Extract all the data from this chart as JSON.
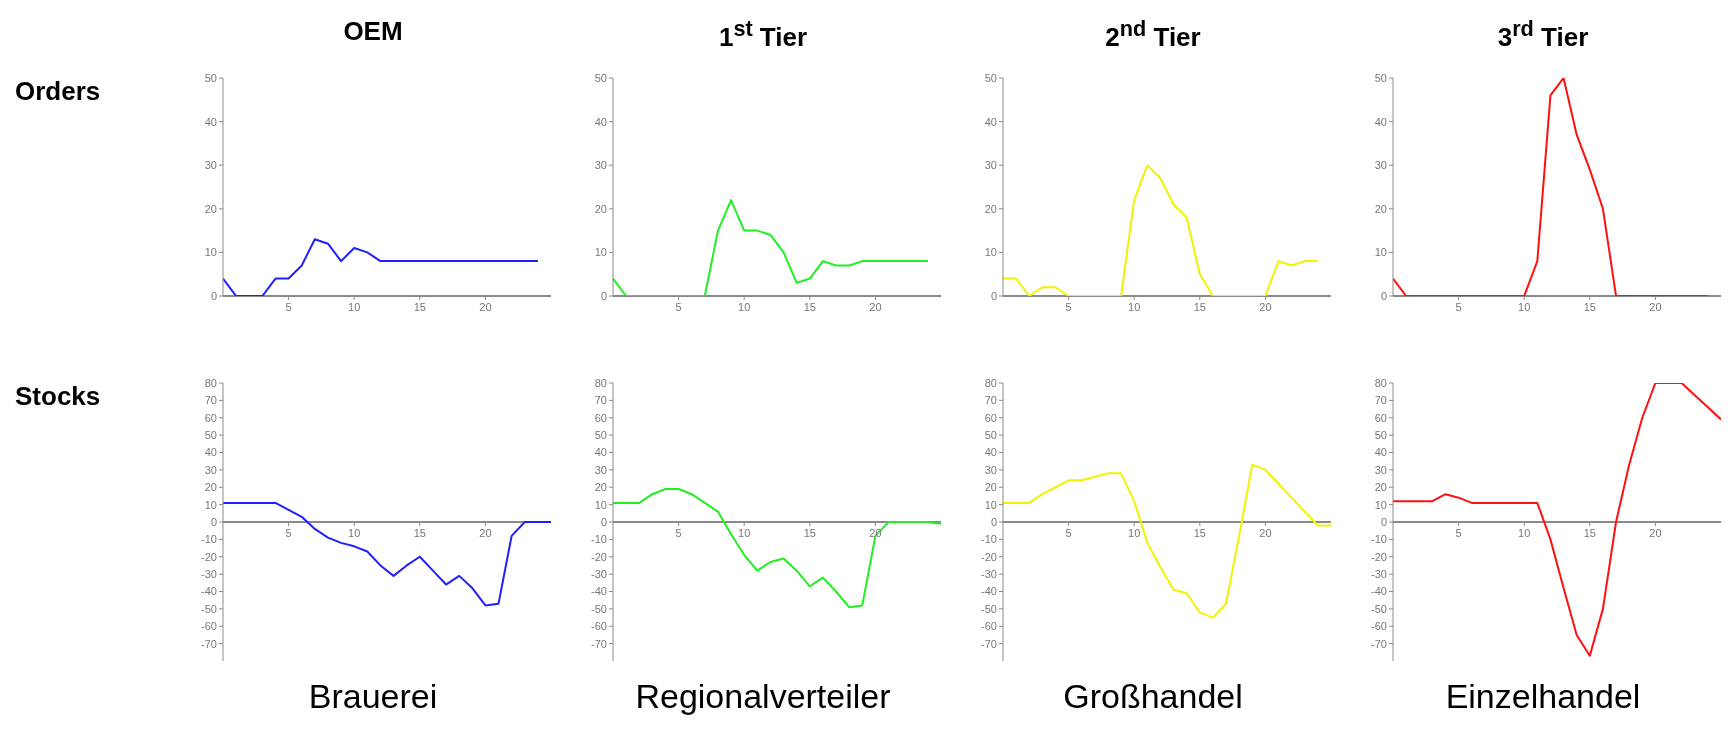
{
  "chart_data": [
    {
      "type": "line",
      "title": "OEM",
      "ylabel": "Orders",
      "x": [
        0,
        1,
        2,
        3,
        4,
        5,
        6,
        7,
        8,
        9,
        10,
        11,
        12,
        13,
        14,
        15,
        16,
        17,
        18,
        19,
        20,
        21,
        22,
        23,
        24
      ],
      "values": [
        4,
        0,
        0,
        0,
        4,
        4,
        7,
        13,
        12,
        8,
        11,
        10,
        8,
        8,
        8,
        8,
        8,
        8,
        8,
        8,
        8,
        8,
        8,
        8,
        8
      ],
      "color": "#2020ff",
      "xlim": [
        0,
        25
      ],
      "xticks": [
        5,
        10,
        15,
        20
      ],
      "ylim": [
        0,
        50
      ],
      "yticks": [
        0,
        10,
        20,
        30,
        40,
        50
      ]
    },
    {
      "type": "line",
      "title": "1$^{st}$ Tier",
      "x": [
        0,
        1,
        2,
        3,
        4,
        5,
        6,
        7,
        8,
        9,
        10,
        11,
        12,
        13,
        14,
        15,
        16,
        17,
        18,
        19,
        20,
        21,
        22,
        23,
        24
      ],
      "values": [
        4,
        0,
        0,
        0,
        0,
        0,
        0,
        0,
        15,
        22,
        15,
        15,
        14,
        10,
        3,
        4,
        8,
        7,
        7,
        8,
        8,
        8,
        8,
        8,
        8
      ],
      "color": "#22ee22",
      "xlim": [
        0,
        25
      ],
      "xticks": [
        5,
        10,
        15,
        20
      ],
      "ylim": [
        0,
        50
      ],
      "yticks": [
        0,
        10,
        20,
        30,
        40,
        50
      ]
    },
    {
      "type": "line",
      "title": "2$^{nd}$ Tier",
      "x": [
        0,
        1,
        2,
        3,
        4,
        5,
        6,
        7,
        8,
        9,
        10,
        11,
        12,
        13,
        14,
        15,
        16,
        17,
        18,
        19,
        20,
        21,
        22,
        23,
        24
      ],
      "values": [
        4,
        4,
        0,
        2,
        2,
        0,
        0,
        0,
        0,
        0,
        22,
        30,
        27,
        21,
        18,
        5,
        0,
        0,
        0,
        0,
        0,
        8,
        7,
        8,
        8
      ],
      "color": "#f2f200",
      "xlim": [
        0,
        25
      ],
      "xticks": [
        5,
        10,
        15,
        20
      ],
      "ylim": [
        0,
        50
      ],
      "yticks": [
        0,
        10,
        20,
        30,
        40,
        50
      ]
    },
    {
      "type": "line",
      "title": "3$^{rd}$ Tier",
      "x": [
        0,
        1,
        2,
        3,
        4,
        5,
        6,
        7,
        8,
        9,
        10,
        11,
        12,
        13,
        14,
        15,
        16,
        17,
        18,
        19,
        20,
        21,
        22,
        23,
        24
      ],
      "values": [
        4,
        0,
        0,
        0,
        0,
        0,
        0,
        0,
        0,
        0,
        0,
        8,
        46,
        50,
        37,
        29,
        20,
        0,
        0,
        0,
        0,
        0,
        0,
        0,
        0
      ],
      "color": "#ff1010",
      "xlim": [
        0,
        25
      ],
      "xticks": [
        5,
        10,
        15,
        20
      ],
      "ylim": [
        0,
        50
      ],
      "yticks": [
        0,
        10,
        20,
        30,
        40,
        50
      ]
    },
    {
      "type": "line",
      "ylabel": "Stocks",
      "xlabel": "Brauerei",
      "x": [
        0,
        1,
        2,
        3,
        4,
        5,
        6,
        7,
        8,
        9,
        10,
        11,
        12,
        13,
        14,
        15,
        16,
        17,
        18,
        19,
        20,
        21,
        22,
        23,
        24,
        25
      ],
      "values": [
        11,
        11,
        11,
        11,
        11,
        7,
        3,
        -4,
        -9,
        -12,
        -14,
        -17,
        -25,
        -31,
        -25,
        -20,
        -28,
        -36,
        -31,
        -38,
        -48,
        -47,
        -8,
        0,
        0,
        0
      ],
      "color": "#2020ff",
      "xlim": [
        0,
        25
      ],
      "xticks": [
        5,
        10,
        15,
        20
      ],
      "ylim": [
        -80,
        80
      ],
      "yticks": [
        80,
        70,
        60,
        50,
        40,
        30,
        20,
        10,
        0,
        -10,
        -20,
        -30,
        -40,
        -50,
        -60,
        -70
      ]
    },
    {
      "type": "line",
      "xlabel": "Regionalverteiler",
      "x": [
        0,
        1,
        2,
        3,
        4,
        5,
        6,
        7,
        8,
        9,
        10,
        11,
        12,
        13,
        14,
        15,
        16,
        17,
        18,
        19,
        20,
        21,
        22,
        23,
        24,
        25
      ],
      "values": [
        11,
        11,
        11,
        16,
        19,
        19,
        16,
        11,
        6,
        -7,
        -19,
        -28,
        -23,
        -21,
        -28,
        -37,
        -32,
        -40,
        -49,
        -48,
        -8,
        0,
        0,
        0,
        0,
        -1
      ],
      "color": "#22ee22",
      "xlim": [
        0,
        25
      ],
      "xticks": [
        5,
        10,
        15,
        20
      ],
      "ylim": [
        -80,
        80
      ],
      "yticks": [
        80,
        70,
        60,
        50,
        40,
        30,
        20,
        10,
        0,
        -10,
        -20,
        -30,
        -40,
        -50,
        -60,
        -70
      ]
    },
    {
      "type": "line",
      "xlabel": "Großhandel",
      "x": [
        0,
        1,
        2,
        3,
        4,
        5,
        6,
        7,
        8,
        9,
        10,
        11,
        12,
        13,
        14,
        15,
        16,
        17,
        18,
        19,
        20,
        21,
        22,
        23,
        24,
        25
      ],
      "values": [
        11,
        11,
        11,
        16,
        20,
        24,
        24,
        26,
        28,
        28,
        12,
        -12,
        -26,
        -39,
        -41,
        -52,
        -55,
        -47,
        -8,
        33,
        30,
        22,
        14,
        6,
        -2,
        -2
      ],
      "color": "#f2f200",
      "xlim": [
        0,
        25
      ],
      "xticks": [
        5,
        10,
        15,
        20
      ],
      "ylim": [
        -80,
        80
      ],
      "yticks": [
        80,
        70,
        60,
        50,
        40,
        30,
        20,
        10,
        0,
        -10,
        -20,
        -30,
        -40,
        -50,
        -60,
        -70
      ]
    },
    {
      "type": "line",
      "xlabel": "Einzelhandel",
      "x": [
        0,
        1,
        2,
        3,
        4,
        5,
        6,
        7,
        8,
        9,
        10,
        11,
        12,
        13,
        14,
        15,
        16,
        17,
        18,
        19,
        20,
        21,
        22,
        23,
        24,
        25
      ],
      "values": [
        12,
        12,
        12,
        12,
        16,
        14,
        11,
        11,
        11,
        11,
        11,
        11,
        -10,
        -38,
        -65,
        -77,
        -50,
        0,
        33,
        60,
        80,
        80,
        80,
        73,
        66,
        59
      ],
      "color": "#ff1010",
      "xlim": [
        0,
        25
      ],
      "xticks": [
        5,
        10,
        15,
        20
      ],
      "ylim": [
        -80,
        80
      ],
      "yticks": [
        80,
        70,
        60,
        50,
        40,
        30,
        20,
        10,
        0,
        -10,
        -20,
        -30,
        -40,
        -50,
        -60,
        -70
      ]
    }
  ]
}
